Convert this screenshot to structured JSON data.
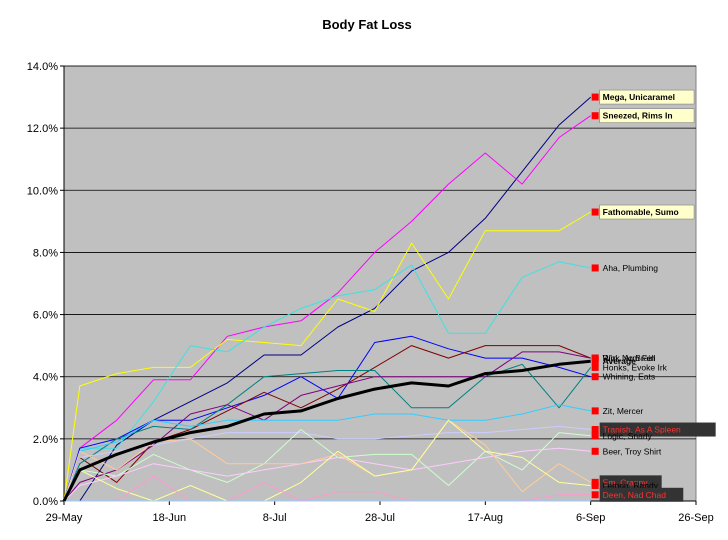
{
  "chart_data": {
    "type": "line",
    "title": "Body Fat Loss",
    "xlabel": "",
    "ylabel": "",
    "ylim": [
      0,
      0.14
    ],
    "yticks": [
      "0.0%",
      "2.0%",
      "4.0%",
      "6.0%",
      "8.0%",
      "10.0%",
      "12.0%",
      "14.0%"
    ],
    "xlim": [
      "2007-05-29",
      "2007-09-26"
    ],
    "xticks": [
      "29-May",
      "18-Jun",
      "8-Jul",
      "28-Jul",
      "17-Aug",
      "6-Sep",
      "26-Sep"
    ],
    "grid": "horizontal",
    "plot_background": "#c0c0c0",
    "x": [
      "2007-05-29",
      "2007-06-01",
      "2007-06-08",
      "2007-06-15",
      "2007-06-22",
      "2007-06-29",
      "2007-07-06",
      "2007-07-13",
      "2007-07-20",
      "2007-07-27",
      "2007-08-03",
      "2007-08-10",
      "2007-08-17",
      "2007-08-24",
      "2007-08-31",
      "2007-09-06"
    ],
    "series": [
      {
        "name": "Mega, Unicaramel",
        "color": "#000080",
        "label_style": "yellow",
        "values": [
          0.0,
          0.0,
          0.018,
          0.026,
          0.032,
          0.038,
          0.047,
          0.047,
          0.056,
          0.062,
          0.074,
          0.08,
          0.091,
          0.106,
          0.121,
          0.13
        ]
      },
      {
        "name": "Sneezed, Rims In",
        "color": "#ff00ff",
        "label_style": "yellow",
        "values": [
          0.0,
          0.017,
          0.026,
          0.039,
          0.039,
          0.053,
          0.056,
          0.058,
          0.067,
          0.08,
          0.09,
          0.102,
          0.112,
          0.102,
          0.117,
          0.124
        ]
      },
      {
        "name": "Fathomable, Sumo",
        "color": "#ffff00",
        "label_style": "yellow",
        "values": [
          0.0,
          0.037,
          0.041,
          0.043,
          0.043,
          0.052,
          0.051,
          0.05,
          0.065,
          0.061,
          0.083,
          0.065,
          0.087,
          0.087,
          0.087,
          0.093
        ]
      },
      {
        "name": "Aha, Plumbing",
        "color": "#40e0e0",
        "label_style": "plain",
        "values": [
          0.0,
          0.017,
          0.017,
          0.032,
          0.05,
          0.048,
          0.056,
          0.062,
          0.066,
          0.068,
          0.076,
          0.054,
          0.054,
          0.072,
          0.077,
          0.075
        ]
      },
      {
        "name": "Whining, Eats",
        "color": "#0000ff",
        "label_style": "plain",
        "values": [
          0.0,
          0.017,
          0.02,
          0.026,
          0.026,
          0.03,
          0.034,
          0.04,
          0.033,
          0.051,
          0.053,
          0.049,
          0.046,
          0.046,
          0.043,
          0.04
        ]
      },
      {
        "name": "Rink, Arm Fell",
        "color": "#800000",
        "label_style": "plain",
        "values": [
          0.0,
          0.014,
          0.006,
          0.019,
          0.023,
          0.029,
          0.035,
          0.03,
          0.036,
          0.043,
          0.05,
          0.046,
          0.05,
          0.05,
          0.05,
          0.046
        ]
      },
      {
        "name": "Honks, Evoke Irk",
        "color": "#008080",
        "label_style": "plain",
        "values": [
          0.0,
          0.012,
          0.02,
          0.024,
          0.023,
          0.031,
          0.04,
          0.041,
          0.042,
          0.042,
          0.03,
          0.03,
          0.04,
          0.044,
          0.03,
          0.043
        ]
      },
      {
        "name": "Average",
        "color": "#000000",
        "label_style": "bold",
        "values": [
          0.0,
          0.01,
          0.015,
          0.019,
          0.022,
          0.024,
          0.028,
          0.029,
          0.033,
          0.036,
          0.038,
          0.037,
          0.041,
          0.042,
          0.044,
          0.045
        ]
      },
      {
        "name": "Win, No Brain",
        "color": "#800080",
        "label_style": "plain",
        "values": [
          0.0,
          0.006,
          0.01,
          0.018,
          0.028,
          0.031,
          0.026,
          0.034,
          0.037,
          0.04,
          0.04,
          0.04,
          0.04,
          0.048,
          0.048,
          0.046
        ]
      },
      {
        "name": "Zit, Mercer",
        "color": "#33ccff",
        "label_style": "plain",
        "values": [
          0.0,
          0.016,
          0.019,
          0.026,
          0.024,
          0.026,
          0.026,
          0.026,
          0.026,
          0.028,
          0.028,
          0.026,
          0.026,
          0.028,
          0.031,
          0.029
        ]
      },
      {
        "name": "Tranish, As A Spleen",
        "color": "#ccccff",
        "label_style": "dark",
        "values": [
          0.0,
          0.014,
          0.016,
          0.018,
          0.02,
          0.022,
          0.022,
          0.022,
          0.02,
          0.02,
          0.021,
          0.022,
          0.022,
          0.023,
          0.024,
          0.023
        ]
      },
      {
        "name": "Logic, Snarly",
        "color": "#ccffcc",
        "label_style": "plain",
        "values": [
          0.0,
          0.01,
          0.008,
          0.015,
          0.01,
          0.006,
          0.012,
          0.023,
          0.014,
          0.015,
          0.015,
          0.005,
          0.016,
          0.01,
          0.022,
          0.021
        ]
      },
      {
        "name": "Beer, Troy Shirt",
        "color": "#ffccff",
        "label_style": "plain",
        "values": [
          0.0,
          0.005,
          0.008,
          0.012,
          0.01,
          0.008,
          0.01,
          0.012,
          0.014,
          0.012,
          0.01,
          0.012,
          0.014,
          0.016,
          0.017,
          0.016
        ]
      },
      {
        "name": "Em, Cranny",
        "color": "#ffcc99",
        "label_style": "dark",
        "values": [
          0.0,
          0.016,
          0.01,
          0.019,
          0.02,
          0.012,
          0.012,
          0.012,
          0.015,
          0.008,
          0.01,
          0.026,
          0.018,
          0.003,
          0.012,
          0.006
        ]
      },
      {
        "name": "Lemon, Randy",
        "color": "#ffff99",
        "label_style": "plain",
        "values": [
          0.0,
          0.01,
          0.004,
          0.0,
          0.005,
          0.0,
          0.0,
          0.006,
          0.016,
          0.008,
          0.01,
          0.026,
          0.016,
          0.014,
          0.006,
          0.005
        ]
      },
      {
        "name": "Deen, Nad Chad",
        "color": "#ff99cc",
        "label_style": "dark",
        "values": [
          0.0,
          0.0,
          0.0,
          0.008,
          0.0,
          0.0,
          0.006,
          0.0,
          0.003,
          0.003,
          0.0,
          0.0,
          0.0,
          0.0,
          0.002,
          0.002
        ]
      },
      {
        "name": "",
        "color": "#99ccff",
        "label_style": "none",
        "values": [
          0.0,
          0.0,
          0.0,
          0.0,
          0.0,
          0.0,
          0.0,
          0.0,
          0.0,
          0.0,
          0.0,
          0.0,
          0.0,
          0.0,
          0.0,
          0.0
        ]
      }
    ]
  }
}
